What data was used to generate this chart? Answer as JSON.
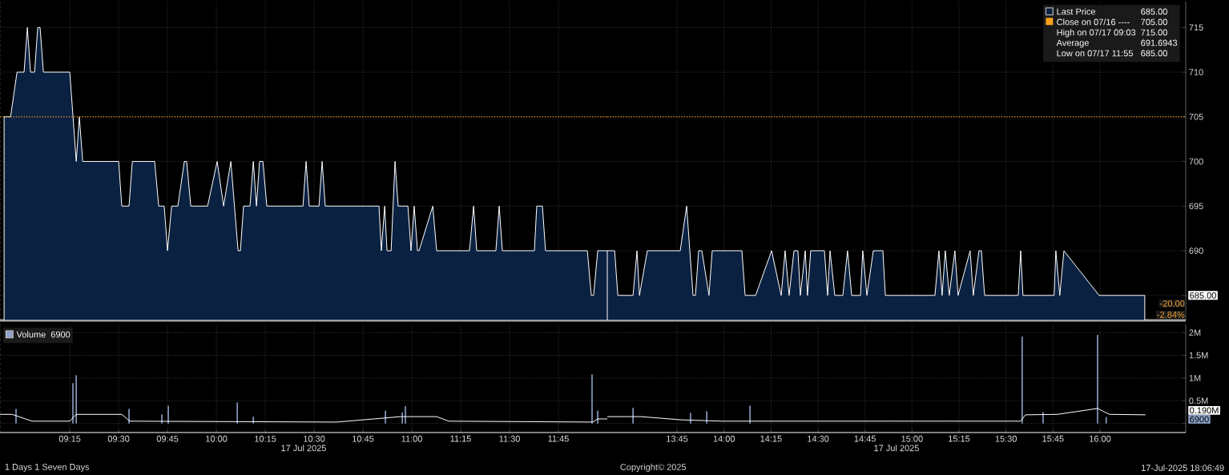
{
  "chart_data": [
    {
      "type": "area",
      "xlim": [
        8.893,
        12.0
      ],
      "ylim": [
        682.2,
        717.9
      ],
      "xticks": [
        {
          "value": 9.25,
          "label": null
        },
        {
          "value": 9.5,
          "label": null
        },
        {
          "value": 9.75,
          "label": null
        },
        {
          "value": 10.0,
          "label": null
        },
        {
          "value": 10.25,
          "label": null
        },
        {
          "value": 10.5,
          "label": null
        },
        {
          "value": 10.75,
          "label": null
        },
        {
          "value": 11.0,
          "label": null
        },
        {
          "value": 11.25,
          "label": null
        },
        {
          "value": 11.5,
          "label": null
        },
        {
          "value": 11.75,
          "label": null
        }
      ],
      "yticks": [
        {
          "value": 685,
          "label": null
        },
        {
          "value": 690,
          "label": null
        },
        {
          "value": 695,
          "label": null
        },
        {
          "value": 700,
          "label": null
        },
        {
          "value": 705,
          "label": null
        },
        {
          "value": 710,
          "label": null
        },
        {
          "value": 715,
          "label": null
        }
      ],
      "grid": true,
      "tick_labels": false,
      "ref_lines": [
        {
          "axis": "y",
          "value": 705,
          "color": "#f7a21b",
          "line_style": "dotted"
        }
      ],
      "series": [
        {
          "color": "#0b2142",
          "x": [
            8.914,
            8.947,
            8.98,
            9.016,
            9.033,
            9.049,
            9.07,
            9.086,
            9.098,
            9.115,
            9.25,
            9.283,
            9.299,
            9.316,
            9.5,
            9.516,
            9.553,
            9.57,
            9.684,
            9.705,
            9.733,
            9.75,
            9.771,
            9.803,
            9.836,
            9.848,
            9.869,
            9.955,
            10.004,
            10.037,
            10.074,
            10.111,
            10.123,
            10.139,
            10.172,
            10.189,
            10.205,
            10.221,
            10.238,
            10.258,
            10.443,
            10.459,
            10.475,
            10.525,
            10.541,
            10.557,
            10.832,
            10.844,
            10.861,
            10.873,
            10.894,
            10.914,
            10.93,
            10.98,
            10.996,
            11.012,
            11.029,
            11.037,
            11.107,
            11.127,
            11.295,
            11.316,
            11.332,
            11.43,
            11.447,
            11.463,
            11.627,
            11.639,
            11.668,
            11.684,
            11.898,
            11.918,
            11.93,
            11.951,
            12.0
          ],
          "values": [
            705,
            705,
            710,
            710,
            715,
            710,
            710,
            715,
            715,
            710,
            710,
            700,
            705,
            700,
            700,
            695,
            695,
            700,
            700,
            695,
            695,
            690,
            695,
            695,
            700,
            700,
            695,
            695,
            700,
            695,
            700,
            690,
            690,
            695,
            695,
            700,
            695,
            700,
            700,
            695,
            695,
            700,
            695,
            695,
            700,
            695,
            695,
            690,
            695,
            690,
            690,
            700,
            695,
            695,
            690,
            695,
            690,
            690,
            695,
            690,
            690,
            695,
            690,
            690,
            695,
            690,
            690,
            695,
            695,
            690,
            690,
            685,
            685,
            690,
            690
          ]
        }
      ]
    },
    {
      "type": "area",
      "xlim": [
        13.379,
        16.456
      ],
      "ylim": [
        682.2,
        717.9
      ],
      "xticks": [
        {
          "value": 13.75,
          "label": null
        },
        {
          "value": 14.0,
          "label": null
        },
        {
          "value": 14.25,
          "label": null
        },
        {
          "value": 14.5,
          "label": null
        },
        {
          "value": 14.75,
          "label": null
        },
        {
          "value": 15.0,
          "label": null
        },
        {
          "value": 15.25,
          "label": null
        },
        {
          "value": 15.5,
          "label": null
        },
        {
          "value": 15.75,
          "label": null
        },
        {
          "value": 16.0,
          "label": null
        }
      ],
      "yticks": [
        {
          "value": 685,
          "label": null
        },
        690,
        695,
        700,
        705,
        710,
        715
      ],
      "grid": true,
      "tick_labels": "y",
      "legend": "top right",
      "ref_lines": [
        {
          "axis": "y",
          "value": 705,
          "label": "Close on 07/16 ----",
          "color": "#f7a21b",
          "line_style": "dotted"
        }
      ],
      "annotations": [
        "685.00",
        "705.00",
        "High on 07/17 09:03",
        "715.00",
        "Average",
        "691.6943",
        "Low on 07/17 11:55",
        "685.00",
        "685.00",
        "-20.00",
        "-2.84%"
      ],
      "series": [
        {
          "name": "Last Price",
          "color": "#0b2142",
          "x": [
            13.379,
            13.418,
            13.435,
            13.516,
            13.537,
            13.55,
            13.592,
            13.767,
            13.801,
            13.835,
            13.848,
            13.865,
            13.882,
            13.92,
            13.937,
            14.095,
            14.112,
            14.168,
            14.253,
            14.304,
            14.325,
            14.346,
            14.372,
            14.393,
            14.406,
            14.432,
            14.444,
            14.461,
            14.534,
            14.551,
            14.564,
            14.589,
            14.632,
            14.657,
            14.679,
            14.726,
            14.738,
            14.76,
            14.794,
            14.845,
            14.858,
            15.122,
            15.143,
            15.16,
            15.177,
            15.198,
            15.228,
            15.245,
            15.309,
            15.326,
            15.356,
            15.369,
            15.386,
            15.565,
            15.578,
            15.59,
            15.756,
            15.765,
            15.786,
            15.808,
            15.995,
            16.238
          ],
          "values": [
            690,
            690,
            685,
            685,
            690,
            685,
            690,
            690,
            695,
            685,
            685,
            690,
            690,
            685,
            690,
            690,
            685,
            685,
            690,
            685,
            690,
            685,
            690,
            690,
            685,
            690,
            685,
            690,
            690,
            685,
            690,
            685,
            685,
            690,
            685,
            685,
            690,
            685,
            690,
            690,
            685,
            685,
            690,
            685,
            690,
            685,
            690,
            685,
            690,
            685,
            690,
            690,
            685,
            685,
            690,
            685,
            685,
            690,
            685,
            690,
            685,
            685
          ]
        }
      ]
    },
    {
      "type": "bar",
      "xlim": [
        8.893,
        12.0
      ],
      "ylim": [
        -0.2,
        2.18
      ],
      "xlabel": "17 Jul 2025",
      "xticks": [
        {
          "value": 9.25,
          "label": "09:15"
        },
        {
          "value": 9.5,
          "label": "09:30"
        },
        {
          "value": 9.75,
          "label": "09:45"
        },
        {
          "value": 10.0,
          "label": "10:00"
        },
        {
          "value": 10.25,
          "label": "10:15"
        },
        {
          "value": 10.5,
          "label": "10:30"
        },
        {
          "value": 10.75,
          "label": "10:45"
        },
        {
          "value": 11.0,
          "label": "11:00"
        },
        {
          "value": 11.25,
          "label": "11:15"
        },
        {
          "value": 11.5,
          "label": "11:30"
        },
        {
          "value": 11.75,
          "label": "11:45"
        }
      ],
      "yticks": [
        {
          "value": 0,
          "label": null
        },
        {
          "value": 0.5,
          "label": null
        },
        {
          "value": 1,
          "label": null
        },
        {
          "value": 1.5,
          "label": null
        },
        {
          "value": 2,
          "label": null
        }
      ],
      "grid": true,
      "tick_labels": "x",
      "legend": "top left",
      "annotations": [
        "6900"
      ],
      "series": [
        {
          "name": "Volume",
          "color": "#8fa3c8",
          "x": [
            8.975,
            9.266,
            9.283,
            9.553,
            9.721,
            9.754,
            10.107,
            10.189,
            10.865,
            10.951,
            10.967,
            11.922,
            11.951
          ],
          "values": [
            0.32,
            0.89,
            1.06,
            0.32,
            0.2,
            0.39,
            0.46,
            0.15,
            0.28,
            0.24,
            0.38,
            1.08,
            0.28
          ]
        },
        {
          "type": "line",
          "color": "#ffffff",
          "x": [
            8.893,
            8.955,
            9.057,
            9.25,
            9.283,
            9.516,
            9.557,
            10.615,
            10.943,
            11.127,
            11.189,
            11.926,
            11.951,
            12.0
          ],
          "values": [
            0.2,
            0.2,
            0.05,
            0.05,
            0.2,
            0.2,
            0.05,
            0.03,
            0.15,
            0.15,
            0.05,
            0.03,
            0.1,
            0.1
          ]
        }
      ]
    },
    {
      "type": "bar",
      "xlim": [
        13.379,
        16.456
      ],
      "ylim": [
        -0.2,
        2.18
      ],
      "xlabel": "17 Jul 2025",
      "xticks": [
        {
          "value": 13.75,
          "label": "13:45"
        },
        {
          "value": 14.0,
          "label": "14:00"
        },
        {
          "value": 14.25,
          "label": "14:15"
        },
        {
          "value": 14.5,
          "label": "14:30"
        },
        {
          "value": 14.75,
          "label": "14:45"
        },
        {
          "value": 15.0,
          "label": "15:00"
        },
        {
          "value": 15.25,
          "label": "15:15"
        },
        {
          "value": 15.5,
          "label": "15:30"
        },
        {
          "value": 15.75,
          "label": "15:45"
        },
        {
          "value": 16.0,
          "label": "16:00"
        }
      ],
      "yticks": [
        {
          "value": 0,
          "label": null
        },
        {
          "value": 0.5,
          "label": "0.5M"
        },
        {
          "value": 1,
          "label": "1M"
        },
        {
          "value": 1.5,
          "label": "1.5M"
        },
        {
          "value": 2,
          "label": "2M"
        }
      ],
      "grid": true,
      "annotations": [
        "0.190M",
        "6900",
        "1 Days 1 Seven Days",
        "Copyright© 2025",
        "17-Jul-2025 18:06:49"
      ],
      "series": [
        {
          "color": "#8fa3c8",
          "x": [
            13.516,
            13.822,
            13.908,
            14.138,
            15.586,
            15.697,
            15.987,
            16.033
          ],
          "values": [
            0.34,
            0.23,
            0.27,
            0.39,
            1.91,
            0.25,
            1.95,
            0.14
          ]
        },
        {
          "type": "line",
          "color": "#ffffff",
          "x": [
            13.379,
            13.558,
            13.771,
            13.984,
            15.578,
            15.603,
            15.774,
            15.987,
            16.05,
            16.242
          ],
          "values": [
            0.15,
            0.15,
            0.08,
            0.05,
            0.05,
            0.19,
            0.2,
            0.33,
            0.2,
            0.19
          ]
        }
      ]
    }
  ]
}
